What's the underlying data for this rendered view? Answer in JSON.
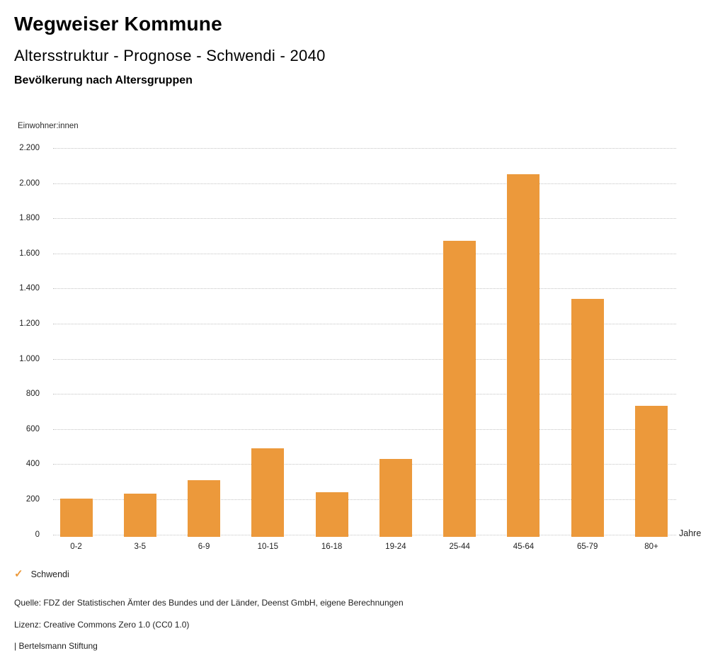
{
  "header": {
    "title": "Wegweiser Kommune",
    "subtitle": "Altersstruktur - Prognose - Schwendi - 2040",
    "chart_title": "Bevölkerung nach Altersgruppen"
  },
  "chart_data": {
    "type": "bar",
    "title": "Bevölkerung nach Altersgruppen",
    "ylabel": "Einwohner:innen",
    "xlabel": "Jahre",
    "categories": [
      "0-2",
      "3-5",
      "6-9",
      "10-15",
      "16-18",
      "19-24",
      "25-44",
      "45-64",
      "65-79",
      "80+"
    ],
    "values": [
      205,
      230,
      310,
      490,
      240,
      430,
      1670,
      2050,
      1340,
      730
    ],
    "series_name": "Schwendi",
    "ylim": [
      0,
      2200
    ],
    "ytick_step": 200,
    "ytick_labels": [
      "0",
      "200",
      "400",
      "600",
      "800",
      "1.000",
      "1.200",
      "1.400",
      "1.600",
      "1.800",
      "2.000",
      "2.200"
    ],
    "grid": "horizontal-dotted",
    "legend_position": "bottom-left",
    "bar_color": "#EC993B"
  },
  "legend": {
    "check_icon": "✓",
    "label": "Schwendi"
  },
  "footer": {
    "source": "Quelle: FDZ der Statistischen Ämter des Bundes und der Länder, Deenst GmbH, eigene Berechnungen",
    "license": "Lizenz: Creative Commons Zero 1.0 (CC0 1.0)",
    "attribution": "| Bertelsmann Stiftung"
  },
  "colors": {
    "accent": "#EC993B",
    "grid": "#C3C3C3",
    "text": "#1F1F1F"
  }
}
